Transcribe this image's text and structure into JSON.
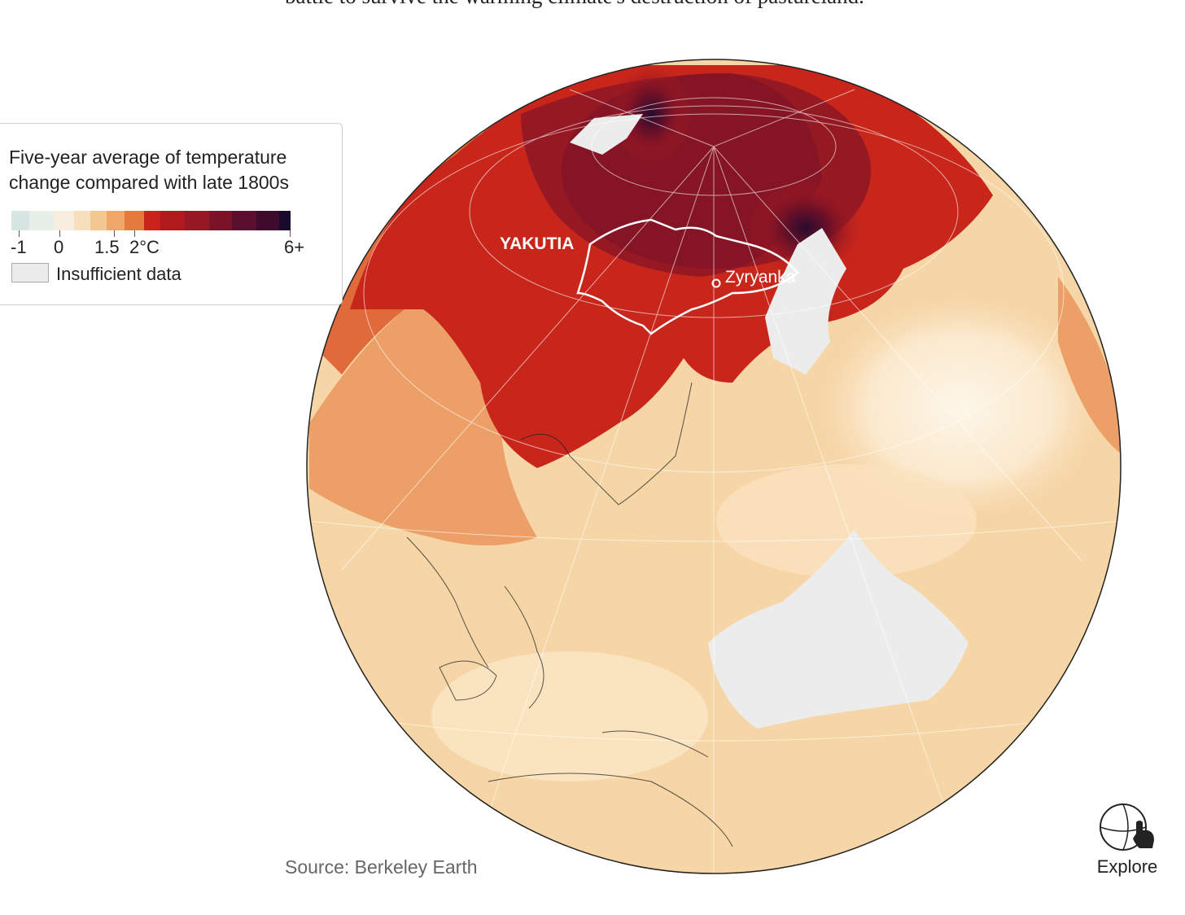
{
  "intro_text": "battle to survive the warming climate's destruction of pastureland.",
  "legend": {
    "title_line1": "Five-year average of temperature",
    "title_line2": "change compared with late 1800s",
    "scale_colors": [
      "#d7e6e3",
      "#e8efe9",
      "#f7eee0",
      "#f7dfbd",
      "#f4c991",
      "#eea766",
      "#e57a3f",
      "#c9231b",
      "#b11a1d",
      "#961824",
      "#7a1229",
      "#5b0e2d",
      "#3e0b2c",
      "#1a0a2e"
    ],
    "ticks": [
      "-1",
      "0",
      "1.5",
      "2°C",
      "6+"
    ],
    "nodata_label": "Insufficient data"
  },
  "map": {
    "labels": {
      "region": "YAKUTIA",
      "town": "Zyryanka"
    },
    "colors": {
      "ocean_base": "#f6d5a6",
      "warm_light": "#fbe6c6",
      "warm_mid": "#efa06a",
      "hot": "#c8261b",
      "hotter": "#8f1722",
      "hottest": "#2a0b2c",
      "nodata": "#ececec",
      "outline": "#222222"
    }
  },
  "source": "Source: Berkeley Earth",
  "explore": {
    "label": "Explore",
    "icon": "globe-hand-icon"
  }
}
